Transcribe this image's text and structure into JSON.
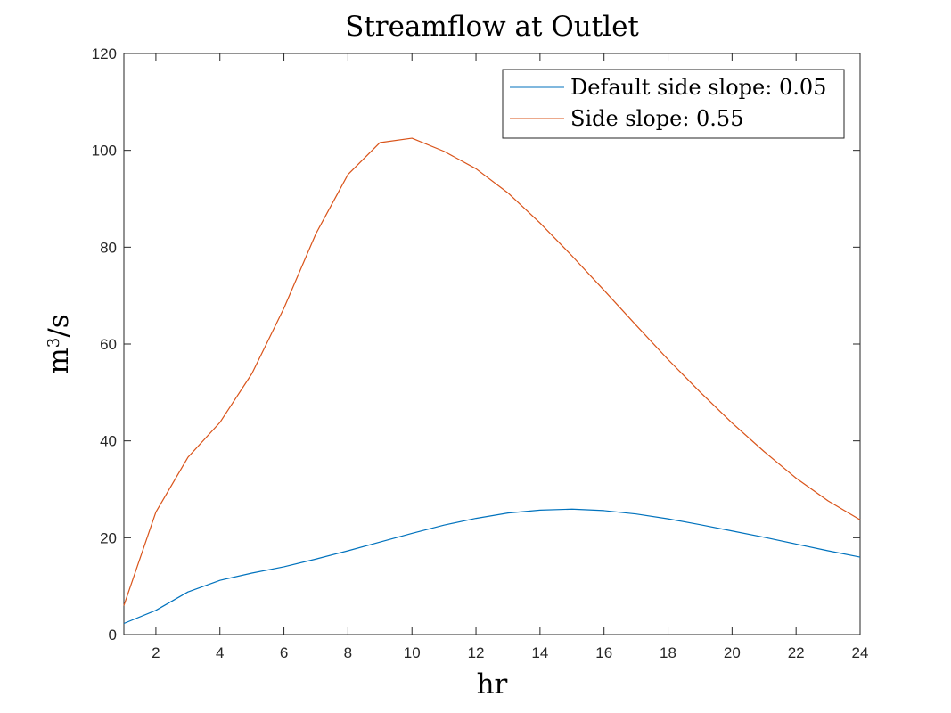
{
  "chart_data": {
    "type": "line",
    "title": "Streamflow at Outlet",
    "xlabel": "hr",
    "ylabel": "m³/s",
    "xlim": [
      1,
      24
    ],
    "ylim": [
      0,
      120
    ],
    "x_ticks": [
      2,
      4,
      6,
      8,
      10,
      12,
      14,
      16,
      18,
      20,
      22,
      24
    ],
    "y_ticks": [
      0,
      20,
      40,
      60,
      80,
      100,
      120
    ],
    "x_tick_labels": [
      "2",
      "4",
      "6",
      "8",
      "10",
      "12",
      "14",
      "16",
      "18",
      "20",
      "22",
      "24"
    ],
    "y_tick_labels": [
      "0",
      "20",
      "40",
      "60",
      "80",
      "100",
      "120"
    ],
    "grid": false,
    "legend_position": "top-right",
    "x": [
      1,
      2,
      3,
      4,
      5,
      6,
      7,
      8,
      9,
      10,
      11,
      12,
      13,
      14,
      15,
      16,
      17,
      18,
      19,
      20,
      21,
      22,
      23,
      24
    ],
    "series": [
      {
        "name": "Default side slope: 0.05",
        "color": "#0072BD",
        "values": [
          2.3,
          5.0,
          8.8,
          11.2,
          12.7,
          14.0,
          15.6,
          17.3,
          19.1,
          20.9,
          22.6,
          24.0,
          25.1,
          25.7,
          25.9,
          25.6,
          24.9,
          23.9,
          22.7,
          21.4,
          20.1,
          18.7,
          17.3,
          16.0
        ]
      },
      {
        "name": "Side slope: 0.55",
        "color": "#D95319",
        "values": [
          6.0,
          25.3,
          36.6,
          43.8,
          53.9,
          67.4,
          82.8,
          95.0,
          101.6,
          102.5,
          99.8,
          96.2,
          91.2,
          85.0,
          78.2,
          71.1,
          63.9,
          56.8,
          50.1,
          43.7,
          37.8,
          32.3,
          27.6,
          23.7
        ]
      }
    ]
  }
}
